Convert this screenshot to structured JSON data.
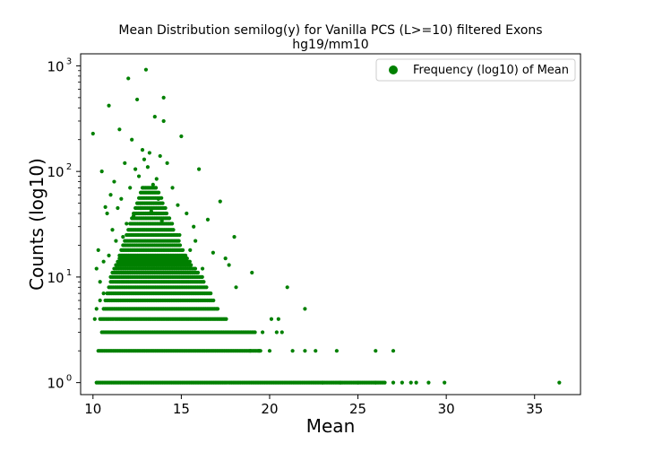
{
  "chart_data": {
    "type": "scatter",
    "title": "Mean Distribution semilog(y) for Vanilla PCS (L>=10) filtered Exons",
    "subtitle": "hg19/mm10",
    "xlabel": "Mean",
    "ylabel": "Counts (log10)",
    "x_ticks": [
      "10",
      "15",
      "20",
      "25",
      "30",
      "35"
    ],
    "x_tick_values": [
      10,
      15,
      20,
      25,
      30,
      35
    ],
    "y_ticks": [
      "10",
      "10",
      "10",
      "10"
    ],
    "y_tick_exponents": [
      "0",
      "1",
      "2",
      "3"
    ],
    "y_tick_values": [
      1,
      10,
      100,
      1000
    ],
    "xlim": [
      9.3,
      37.6
    ],
    "ylim": [
      0.77,
      1300
    ],
    "y_scale": "log",
    "grid": false,
    "legend_position": "top-right",
    "marker_color": "#008000",
    "series": [
      {
        "name": "Frequency (log10) of Mean",
        "points": [
          [
            10.0,
            228
          ],
          [
            10.9,
            420
          ],
          [
            12.0,
            760
          ],
          [
            12.5,
            480
          ],
          [
            13.0,
            920
          ],
          [
            13.5,
            330
          ],
          [
            14.0,
            500
          ],
          [
            14.0,
            300
          ],
          [
            11.5,
            250
          ],
          [
            12.2,
            200
          ],
          [
            12.8,
            160
          ],
          [
            13.2,
            150
          ],
          [
            11.8,
            120
          ],
          [
            13.8,
            140
          ],
          [
            12.4,
            105
          ],
          [
            14.2,
            120
          ],
          [
            15.0,
            215
          ],
          [
            16.0,
            105
          ],
          [
            10.5,
            100
          ],
          [
            11.2,
            80
          ],
          [
            11.0,
            60
          ],
          [
            11.6,
            55
          ],
          [
            12.6,
            90
          ],
          [
            13.1,
            110
          ],
          [
            13.6,
            85
          ],
          [
            14.5,
            70
          ],
          [
            12.9,
            130
          ],
          [
            13.4,
            75
          ],
          [
            11.4,
            45
          ],
          [
            10.8,
            40
          ],
          [
            10.7,
            46
          ],
          [
            12.1,
            70
          ],
          [
            14.8,
            48
          ],
          [
            15.3,
            40
          ],
          [
            16.5,
            35
          ],
          [
            17.2,
            52
          ],
          [
            15.7,
            30
          ],
          [
            16.8,
            17
          ],
          [
            17.5,
            15
          ],
          [
            18.0,
            24
          ],
          [
            17.7,
            13
          ],
          [
            18.1,
            8
          ],
          [
            19.0,
            11
          ],
          [
            21.0,
            8
          ],
          [
            22.0,
            5
          ],
          [
            16.2,
            12
          ],
          [
            15.5,
            18
          ],
          [
            14.9,
            25
          ],
          [
            15.8,
            22
          ],
          [
            13.7,
            55
          ],
          [
            12.7,
            45
          ],
          [
            12.3,
            38
          ],
          [
            13.3,
            42
          ],
          [
            13.9,
            34
          ],
          [
            11.9,
            32
          ],
          [
            10.3,
            18
          ],
          [
            10.6,
            14
          ],
          [
            10.2,
            12
          ],
          [
            10.4,
            9
          ],
          [
            10.9,
            16
          ],
          [
            11.1,
            28
          ],
          [
            11.3,
            22
          ],
          [
            11.7,
            24
          ],
          [
            10.1,
            4
          ],
          [
            10.2,
            5
          ],
          [
            10.4,
            6
          ],
          [
            10.6,
            7
          ],
          [
            20.1,
            4
          ],
          [
            20.5,
            4
          ],
          [
            19.6,
            3
          ],
          [
            20.4,
            3
          ],
          [
            20.7,
            3
          ],
          [
            21.3,
            2
          ],
          [
            22.0,
            2
          ],
          [
            22.6,
            2
          ],
          [
            23.8,
            2
          ],
          [
            26.0,
            2
          ],
          [
            27.0,
            2
          ],
          [
            20.0,
            2
          ],
          [
            19.4,
            2
          ],
          [
            18.9,
            2
          ],
          [
            23.0,
            1
          ],
          [
            24.0,
            1
          ],
          [
            25.0,
            1
          ],
          [
            26.0,
            1
          ],
          [
            27.0,
            1
          ],
          [
            27.5,
            1
          ],
          [
            28.0,
            1
          ],
          [
            28.3,
            1
          ],
          [
            29.0,
            1
          ],
          [
            29.9,
            1
          ],
          [
            36.4,
            1
          ]
        ],
        "bands": [
          {
            "count": 1,
            "x_min": 10.2,
            "x_max": 26.6
          },
          {
            "count": 2,
            "x_min": 10.3,
            "x_max": 19.5
          },
          {
            "count": 3,
            "x_min": 10.5,
            "x_max": 19.2
          },
          {
            "count": 4,
            "x_min": 10.4,
            "x_max": 17.6
          },
          {
            "count": 5,
            "x_min": 10.6,
            "x_max": 17.1
          },
          {
            "count": 6,
            "x_min": 10.7,
            "x_max": 16.9
          },
          {
            "count": 7,
            "x_min": 10.8,
            "x_max": 16.7
          },
          {
            "count": 8,
            "x_min": 10.9,
            "x_max": 16.5
          },
          {
            "count": 9,
            "x_min": 11.0,
            "x_max": 16.3
          },
          {
            "count": 10,
            "x_min": 11.0,
            "x_max": 16.2
          },
          {
            "count": 11,
            "x_min": 11.1,
            "x_max": 16.0
          },
          {
            "count": 12,
            "x_min": 11.2,
            "x_max": 15.8
          },
          {
            "count": 13,
            "x_min": 11.3,
            "x_max": 15.6
          },
          {
            "count": 14,
            "x_min": 11.4,
            "x_max": 15.5
          },
          {
            "count": 15,
            "x_min": 11.5,
            "x_max": 15.4
          },
          {
            "count": 16,
            "x_min": 11.5,
            "x_max": 15.3
          },
          {
            "count": 18,
            "x_min": 11.6,
            "x_max": 15.1
          },
          {
            "count": 20,
            "x_min": 11.7,
            "x_max": 15.0
          },
          {
            "count": 22,
            "x_min": 11.8,
            "x_max": 14.9
          },
          {
            "count": 25,
            "x_min": 11.9,
            "x_max": 14.8
          },
          {
            "count": 28,
            "x_min": 12.0,
            "x_max": 14.6
          },
          {
            "count": 32,
            "x_min": 12.1,
            "x_max": 14.5
          },
          {
            "count": 36,
            "x_min": 12.2,
            "x_max": 14.4
          },
          {
            "count": 40,
            "x_min": 12.3,
            "x_max": 14.2
          },
          {
            "count": 45,
            "x_min": 12.4,
            "x_max": 14.1
          },
          {
            "count": 50,
            "x_min": 12.5,
            "x_max": 14.0
          },
          {
            "count": 56,
            "x_min": 12.6,
            "x_max": 13.9
          },
          {
            "count": 63,
            "x_min": 12.7,
            "x_max": 13.8
          },
          {
            "count": 70,
            "x_min": 12.8,
            "x_max": 13.6
          }
        ]
      }
    ]
  }
}
